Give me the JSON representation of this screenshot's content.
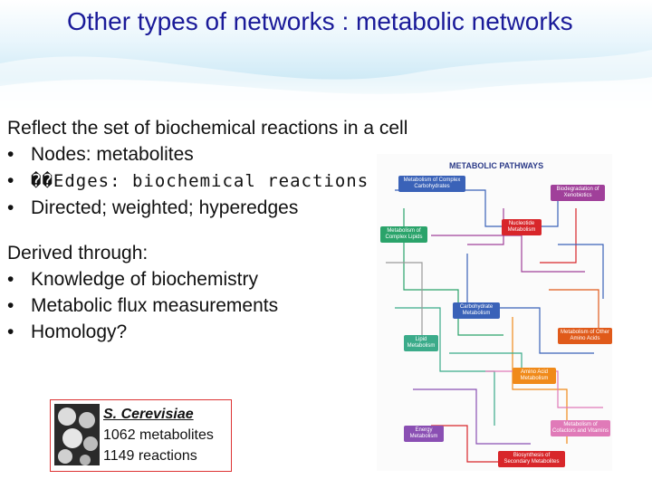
{
  "title": "Other types of networks : metabolic networks",
  "intro": {
    "heading": "Reflect the set of biochemical reactions in a cell",
    "bullets": [
      "Nodes: metabolites",
      "��Edges: biochemical reactions",
      "Directed; weighted; hyperedges"
    ]
  },
  "derived": {
    "heading": "Derived through:",
    "bullets": [
      "Knowledge of biochemistry",
      "Metabolic flux measurements",
      "Homology?"
    ]
  },
  "bullet_symbol": "•",
  "pathway_map": {
    "title": "METABOLIC PATHWAYS",
    "modules": [
      {
        "label": "Metabolism of Complex Carbohydrates",
        "color": "#3a62b8"
      },
      {
        "label": "Biodegradation of Xenobiotics",
        "color": "#a0409a"
      },
      {
        "label": "Nucleotide Metabolism",
        "color": "#d8262a"
      },
      {
        "label": "Metabolism of Complex Lipids",
        "color": "#2aa36a"
      },
      {
        "label": "Carbohydrate Metabolism",
        "color": "#3a62b8"
      },
      {
        "label": "Lipid Metabolism",
        "color": "#3bab8a"
      },
      {
        "label": "Metabolism of Other Amino Acids",
        "color": "#e05a1a"
      },
      {
        "label": "Amino Acid Metabolism",
        "color": "#f08a1a"
      },
      {
        "label": "Energy Metabolism",
        "color": "#8a4fb3"
      },
      {
        "label": "Metabolism of Cofactors and Vitamins",
        "color": "#e07ab8"
      },
      {
        "label": "Biosynthesis of Secondary Metabolites",
        "color": "#d8262a"
      }
    ]
  },
  "organism": {
    "name": "S. Cerevisiae",
    "metabolites": "1062 metabolites",
    "reactions": "1149 reactions"
  }
}
